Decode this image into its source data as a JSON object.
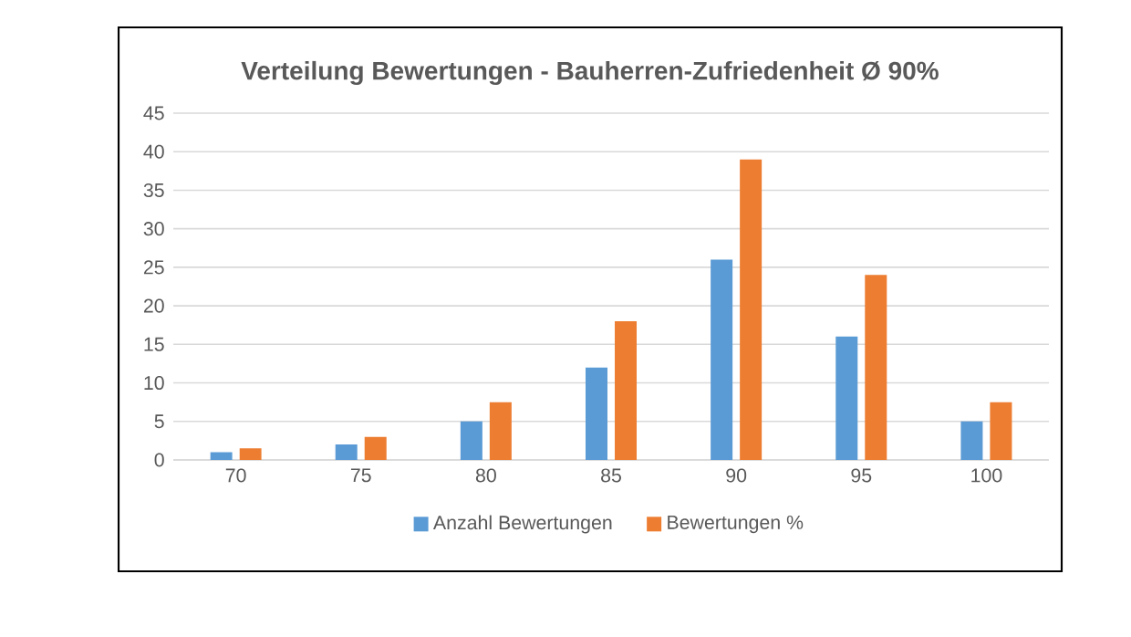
{
  "chart_data": {
    "type": "bar",
    "title": "Verteilung Bewertungen - Bauherren-Zufriedenheit Ø 90%",
    "categories": [
      "70",
      "75",
      "80",
      "85",
      "90",
      "95",
      "100"
    ],
    "series": [
      {
        "name": "Anzahl Bewertungen",
        "color": "#5b9bd5",
        "values": [
          1,
          2,
          5,
          12,
          26,
          16,
          5
        ]
      },
      {
        "name": "Bewertungen %",
        "color": "#ed7d31",
        "values": [
          1.5,
          3,
          7.5,
          18,
          39,
          24,
          7.5
        ]
      }
    ],
    "ylim": [
      0,
      45
    ],
    "yticks": [
      0,
      5,
      10,
      15,
      20,
      25,
      30,
      35,
      40,
      45
    ],
    "grid": "y",
    "legend": "bottom"
  }
}
